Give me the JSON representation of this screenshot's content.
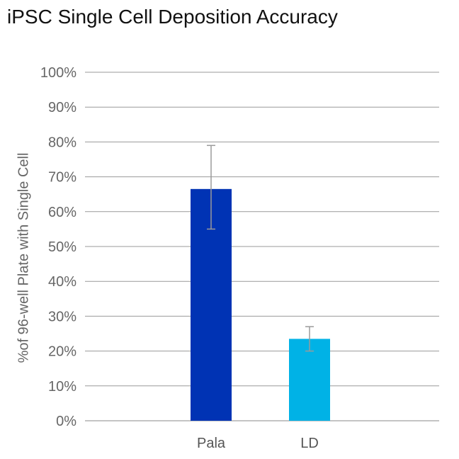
{
  "chart_data": {
    "type": "bar",
    "title": "iPSC Single Cell Deposition Accuracy",
    "ylabel": "%of 96-well Plate with Single Cell",
    "xlabel": "",
    "categories": [
      "Pala",
      "LD"
    ],
    "values": [
      66.5,
      23.5
    ],
    "error_low": [
      55,
      20
    ],
    "error_high": [
      79,
      27
    ],
    "ylim": [
      0,
      100
    ],
    "yticks": [
      0,
      10,
      20,
      30,
      40,
      50,
      60,
      70,
      80,
      90,
      100
    ],
    "ytick_labels": [
      "0%",
      "10%",
      "20%",
      "30%",
      "40%",
      "50%",
      "60%",
      "70%",
      "80%",
      "90%",
      "100%"
    ],
    "colors": [
      "#0033b4",
      "#00b2e6"
    ],
    "grid": true,
    "legend": "none"
  }
}
